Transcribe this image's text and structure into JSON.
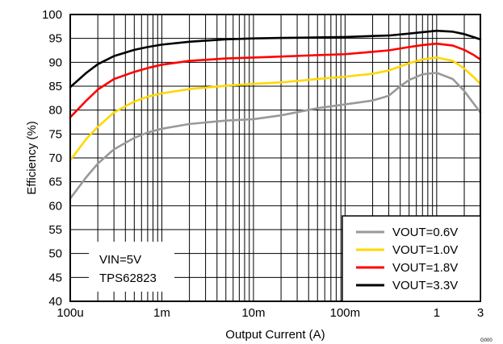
{
  "chart_data": {
    "type": "line",
    "title": "",
    "xlabel": "Output Current (A)",
    "ylabel": "Efficiency (%)",
    "x_scale": "log",
    "xlim": [
      0.0001,
      3
    ],
    "ylim": [
      40,
      100
    ],
    "grid": true,
    "x_ticks": [
      {
        "value": 0.0001,
        "label": "100u"
      },
      {
        "value": 0.001,
        "label": "1m"
      },
      {
        "value": 0.01,
        "label": "10m"
      },
      {
        "value": 0.1,
        "label": "100m"
      },
      {
        "value": 1,
        "label": "1"
      },
      {
        "value": 3,
        "label": "3"
      }
    ],
    "y_ticks": [
      40,
      45,
      50,
      55,
      60,
      65,
      70,
      75,
      80,
      85,
      90,
      95,
      100
    ],
    "legend_position": "bottom-right",
    "annotations": [
      "VIN=5V",
      "TPS62823"
    ],
    "figure_code": "G000",
    "series": [
      {
        "name": "VOUT=0.6V",
        "color": "#999999",
        "points": [
          [
            0.0001,
            61.5
          ],
          [
            0.00015,
            66
          ],
          [
            0.0002,
            68.8
          ],
          [
            0.0003,
            71.8
          ],
          [
            0.0005,
            74.2
          ],
          [
            0.0007,
            75.3
          ],
          [
            0.001,
            76.1
          ],
          [
            0.002,
            77.1
          ],
          [
            0.005,
            77.8
          ],
          [
            0.01,
            78.1
          ],
          [
            0.02,
            78.9
          ],
          [
            0.05,
            80.4
          ],
          [
            0.1,
            81.2
          ],
          [
            0.2,
            82
          ],
          [
            0.3,
            83
          ],
          [
            0.4,
            85
          ],
          [
            0.5,
            86.3
          ],
          [
            0.7,
            87.5
          ],
          [
            1.0,
            87.8
          ],
          [
            1.5,
            86.5
          ],
          [
            2.0,
            84
          ],
          [
            2.5,
            81.5
          ],
          [
            3.0,
            79.5
          ]
        ]
      },
      {
        "name": "VOUT=1.0V",
        "color": "#ffd700",
        "points": [
          [
            0.0001,
            69.5
          ],
          [
            0.00015,
            74
          ],
          [
            0.0002,
            76.5
          ],
          [
            0.0003,
            79.5
          ],
          [
            0.0005,
            81.8
          ],
          [
            0.0007,
            82.8
          ],
          [
            0.001,
            83.5
          ],
          [
            0.002,
            84.4
          ],
          [
            0.005,
            85.1
          ],
          [
            0.01,
            85.5
          ],
          [
            0.02,
            85.8
          ],
          [
            0.05,
            86.5
          ],
          [
            0.1,
            87
          ],
          [
            0.2,
            87.6
          ],
          [
            0.3,
            88.3
          ],
          [
            0.5,
            89.8
          ],
          [
            0.7,
            90.6
          ],
          [
            1.0,
            91
          ],
          [
            1.5,
            90.3
          ],
          [
            2.0,
            88.7
          ],
          [
            2.5,
            87
          ],
          [
            3.0,
            85.5
          ]
        ]
      },
      {
        "name": "VOUT=1.8V",
        "color": "#ff0000",
        "points": [
          [
            0.0001,
            78.5
          ],
          [
            0.00015,
            82
          ],
          [
            0.0002,
            84.3
          ],
          [
            0.0003,
            86.5
          ],
          [
            0.0005,
            88
          ],
          [
            0.0007,
            88.8
          ],
          [
            0.001,
            89.5
          ],
          [
            0.002,
            90.3
          ],
          [
            0.005,
            90.8
          ],
          [
            0.01,
            91
          ],
          [
            0.02,
            91.2
          ],
          [
            0.05,
            91.5
          ],
          [
            0.1,
            91.7
          ],
          [
            0.2,
            92.2
          ],
          [
            0.3,
            92.5
          ],
          [
            0.5,
            93.2
          ],
          [
            0.7,
            93.6
          ],
          [
            1.0,
            93.9
          ],
          [
            1.5,
            93.5
          ],
          [
            2.0,
            92.6
          ],
          [
            2.5,
            91.6
          ],
          [
            3.0,
            90.6
          ]
        ]
      },
      {
        "name": "VOUT=3.3V",
        "color": "#000000",
        "points": [
          [
            0.0001,
            84.8
          ],
          [
            0.00015,
            87.8
          ],
          [
            0.0002,
            89.6
          ],
          [
            0.0003,
            91.3
          ],
          [
            0.0005,
            92.6
          ],
          [
            0.0007,
            93.2
          ],
          [
            0.001,
            93.7
          ],
          [
            0.002,
            94.3
          ],
          [
            0.005,
            94.8
          ],
          [
            0.01,
            95
          ],
          [
            0.02,
            95.1
          ],
          [
            0.05,
            95.2
          ],
          [
            0.1,
            95.3
          ],
          [
            0.2,
            95.5
          ],
          [
            0.3,
            95.6
          ],
          [
            0.5,
            96
          ],
          [
            0.7,
            96.3
          ],
          [
            1.0,
            96.6
          ],
          [
            1.5,
            96.4
          ],
          [
            2.0,
            95.9
          ],
          [
            2.5,
            95.3
          ],
          [
            3.0,
            94.8
          ]
        ]
      }
    ]
  }
}
